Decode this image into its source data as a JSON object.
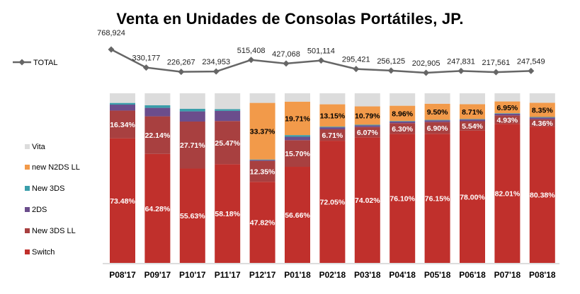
{
  "chart_data": {
    "type": "bar",
    "stacked": "100%",
    "title": "Venta en Unidades de Consolas Portátiles, JP.",
    "categories": [
      "P08'17",
      "P09'17",
      "P10'17",
      "P11'17",
      "P12'17",
      "P01'18",
      "P02'18",
      "P03'18",
      "P04'18",
      "P05'18",
      "P06'18",
      "P07'18",
      "P08'18"
    ],
    "series": [
      {
        "name": "Switch",
        "color": "#c0302c",
        "values": [
          73.48,
          64.28,
          55.63,
          58.18,
          47.82,
          56.66,
          72.05,
          74.02,
          76.1,
          76.15,
          78.0,
          82.01,
          80.38
        ],
        "labels": [
          "73.48%",
          "64.28%",
          "55.63%",
          "58.18%",
          "47.82%",
          "56.66%",
          "72.05%",
          "74.02%",
          "76.10%",
          "76.15%",
          "78.00%",
          "82.01%",
          "80.38%"
        ]
      },
      {
        "name": "New 3DS LL",
        "color": "#a84040",
        "values": [
          16.34,
          22.14,
          27.71,
          25.47,
          12.35,
          15.7,
          6.71,
          6.07,
          6.3,
          6.9,
          5.54,
          4.93,
          4.36
        ],
        "labels": [
          "16.34%",
          "22.14%",
          "27.71%",
          "25.47%",
          "12.35%",
          "15.70%",
          "6.71%",
          "6.07%",
          "6.30%",
          "6.90%",
          "5.54%",
          "4.93%",
          "4.36%"
        ]
      },
      {
        "name": "2DS",
        "color": "#6b4d8c",
        "values": [
          3.5,
          5.0,
          6.0,
          6.0,
          0.5,
          2.0,
          1.2,
          1.0,
          1.0,
          1.0,
          1.0,
          1.0,
          1.0
        ],
        "labels": [
          "",
          "",
          "",
          "",
          "",
          "",
          "",
          "",
          "",
          "",
          "",
          "",
          ""
        ]
      },
      {
        "name": "New 3DS",
        "color": "#3a9eaa",
        "values": [
          1.0,
          1.5,
          1.5,
          1.0,
          0.3,
          1.0,
          0.4,
          0.4,
          0.3,
          0.3,
          0.3,
          0.3,
          0.3
        ],
        "labels": [
          "",
          "",
          "",
          "",
          "",
          "",
          "",
          "",
          "",
          "",
          "",
          "",
          ""
        ]
      },
      {
        "name": "new N2DS LL",
        "color": "#f29a4a",
        "values": [
          0,
          0,
          0,
          0,
          33.37,
          19.71,
          13.15,
          10.79,
          8.96,
          9.5,
          8.71,
          6.95,
          8.35
        ],
        "labels": [
          "",
          "",
          "",
          "",
          "33.37%",
          "19.71%",
          "13.15%",
          "10.79%",
          "8.96%",
          "9.50%",
          "8.71%",
          "6.95%",
          "8.35%"
        ]
      },
      {
        "name": "Vita",
        "color": "#dcdcdc",
        "values": [
          5.68,
          7.08,
          9.16,
          9.35,
          5.66,
          4.93,
          6.49,
          7.72,
          7.34,
          6.15,
          6.45,
          4.81,
          5.61
        ],
        "labels": [
          "",
          "",
          "",
          "",
          "",
          "",
          "",
          "",
          "",
          "",
          "",
          "",
          ""
        ]
      }
    ],
    "total": {
      "name": "TOTAL",
      "values": [
        768924,
        330177,
        226267,
        234953,
        515408,
        427068,
        501114,
        295421,
        256125,
        202905,
        247831,
        217561,
        247549
      ],
      "labels": [
        "768,924",
        "330,177",
        "226,267",
        "234,953",
        "515,408",
        "427,068",
        "501,114",
        "295,421",
        "256,125",
        "202,905",
        "247,831",
        "217,561",
        "247,549"
      ],
      "color": "#666666"
    },
    "legend_position": "left",
    "grid": false
  }
}
